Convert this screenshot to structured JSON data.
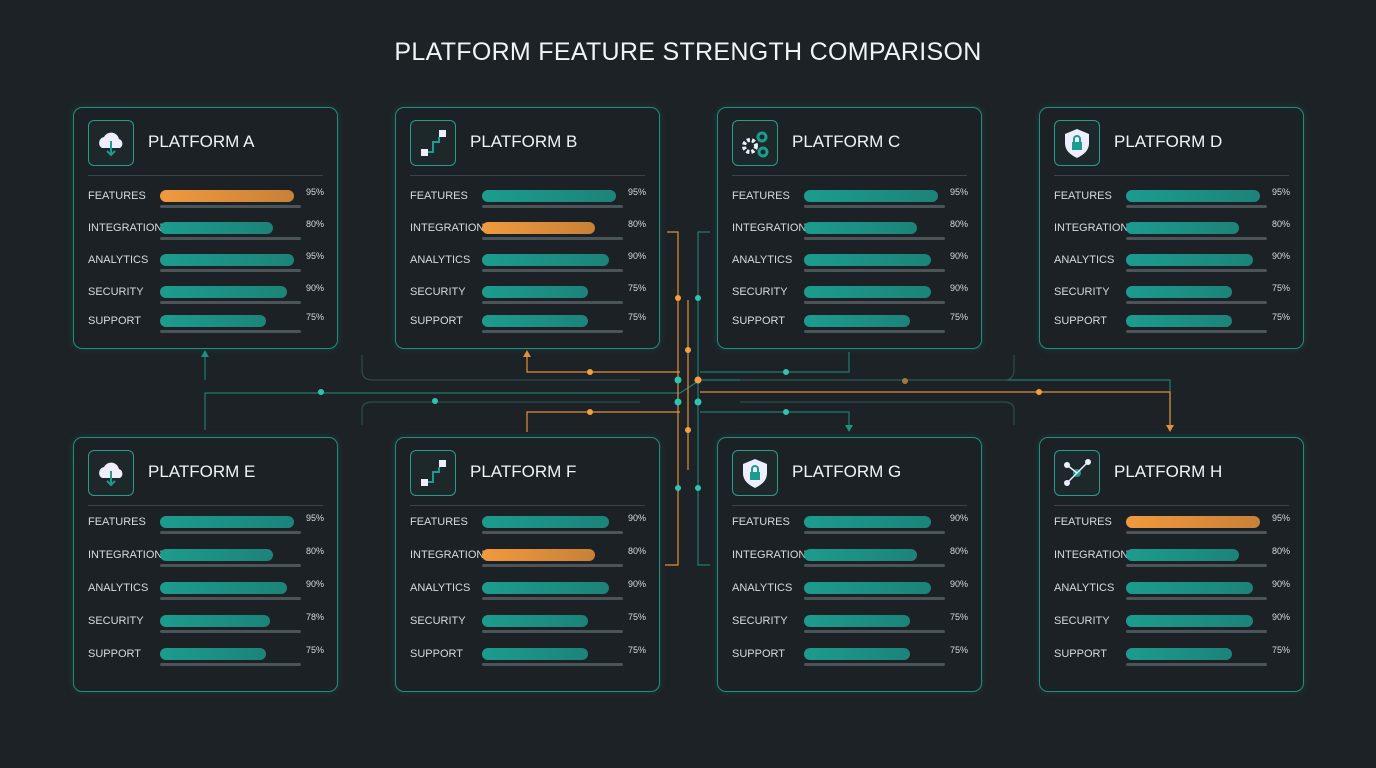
{
  "title": "PLATFORM FEATURE STRENGTH COMPARISON",
  "cards": [
    {
      "name": "PLATFORM A",
      "rows": [
        {
          "label": "FEATURES",
          "value": 95,
          "value_label": "95%",
          "color": "#f2993d"
        },
        {
          "label": "INTEGRATION",
          "value": 80,
          "value_label": "80%",
          "color": "#1c9c8e"
        },
        {
          "label": "ANALYTICS",
          "value": 95,
          "value_label": "95%",
          "color": "#1c9c8e"
        },
        {
          "label": "SECURITY",
          "value": 90,
          "value_label": "90%",
          "color": "#1c9c8e"
        },
        {
          "label": "SUPPORT",
          "value": 75,
          "value_label": "75%",
          "color": "#1c9c8e"
        }
      ]
    },
    {
      "name": "PLATFORM B",
      "rows": [
        {
          "label": "FEATURES",
          "value": 95,
          "value_label": "95%",
          "color": "#1c9c8e"
        },
        {
          "label": "INTEGRATION",
          "value": 80,
          "value_label": "80%",
          "color": "#f2993d"
        },
        {
          "label": "ANALYTICS",
          "value": 90,
          "value_label": "90%",
          "color": "#1c9c8e"
        },
        {
          "label": "SECURITY",
          "value": 75,
          "value_label": "75%",
          "color": "#1c9c8e"
        },
        {
          "label": "SUPPORT",
          "value": 75,
          "value_label": "75%",
          "color": "#1c9c8e"
        }
      ]
    },
    {
      "name": "PLATFORM C",
      "rows": [
        {
          "label": "FEATURES",
          "value": 95,
          "value_label": "95%",
          "color": "#1c9c8e"
        },
        {
          "label": "INTEGRATION",
          "value": 80,
          "value_label": "80%",
          "color": "#1c9c8e"
        },
        {
          "label": "ANALYTICS",
          "value": 90,
          "value_label": "90%",
          "color": "#1c9c8e"
        },
        {
          "label": "SECURITY",
          "value": 90,
          "value_label": "90%",
          "color": "#1c9c8e"
        },
        {
          "label": "SUPPORT",
          "value": 75,
          "value_label": "75%",
          "color": "#1c9c8e"
        }
      ]
    },
    {
      "name": "PLATFORM D",
      "rows": [
        {
          "label": "FEATURES",
          "value": 95,
          "value_label": "95%",
          "color": "#1c9c8e"
        },
        {
          "label": "INTEGRATION",
          "value": 80,
          "value_label": "80%",
          "color": "#1c9c8e"
        },
        {
          "label": "ANALYTICS",
          "value": 90,
          "value_label": "90%",
          "color": "#1c9c8e"
        },
        {
          "label": "SECURITY",
          "value": 75,
          "value_label": "75%",
          "color": "#1c9c8e"
        },
        {
          "label": "SUPPORT",
          "value": 75,
          "value_label": "75%",
          "color": "#1c9c8e"
        }
      ]
    },
    {
      "name": "PLATFORM E",
      "rows": [
        {
          "label": "FEATURES",
          "value": 95,
          "value_label": "95%",
          "color": "#1c9c8e"
        },
        {
          "label": "INTEGRATION",
          "value": 80,
          "value_label": "80%",
          "color": "#1c9c8e"
        },
        {
          "label": "ANALYTICS",
          "value": 90,
          "value_label": "90%",
          "color": "#1c9c8e"
        },
        {
          "label": "SECURITY",
          "value": 78,
          "value_label": "78%",
          "color": "#1c9c8e"
        },
        {
          "label": "SUPPORT",
          "value": 75,
          "value_label": "75%",
          "color": "#1c9c8e"
        }
      ]
    },
    {
      "name": "PLATFORM F",
      "rows": [
        {
          "label": "FEATURES",
          "value": 90,
          "value_label": "90%",
          "color": "#1c9c8e"
        },
        {
          "label": "INTEGRATION",
          "value": 80,
          "value_label": "80%",
          "color": "#f2993d"
        },
        {
          "label": "ANALYTICS",
          "value": 90,
          "value_label": "90%",
          "color": "#1c9c8e"
        },
        {
          "label": "SECURITY",
          "value": 75,
          "value_label": "75%",
          "color": "#1c9c8e"
        },
        {
          "label": "SUPPORT",
          "value": 75,
          "value_label": "75%",
          "color": "#1c9c8e"
        }
      ]
    },
    {
      "name": "PLATFORM G",
      "rows": [
        {
          "label": "FEATURES",
          "value": 90,
          "value_label": "90%",
          "color": "#1c9c8e"
        },
        {
          "label": "INTEGRATION",
          "value": 80,
          "value_label": "80%",
          "color": "#1c9c8e"
        },
        {
          "label": "ANALYTICS",
          "value": 90,
          "value_label": "90%",
          "color": "#1c9c8e"
        },
        {
          "label": "SECURITY",
          "value": 75,
          "value_label": "75%",
          "color": "#1c9c8e"
        },
        {
          "label": "SUPPORT",
          "value": 75,
          "value_label": "75%",
          "color": "#1c9c8e"
        }
      ]
    },
    {
      "name": "PLATFORM H",
      "rows": [
        {
          "label": "FEATURES",
          "value": 95,
          "value_label": "95%",
          "color": "#f2993d"
        },
        {
          "label": "INTEGRATION",
          "value": 80,
          "value_label": "80%",
          "color": "#1c9c8e"
        },
        {
          "label": "ANALYTICS",
          "value": 90,
          "value_label": "90%",
          "color": "#1c9c8e"
        },
        {
          "label": "SECURITY",
          "value": 90,
          "value_label": "90%",
          "color": "#1c9c8e"
        },
        {
          "label": "SUPPORT",
          "value": 75,
          "value_label": "75%",
          "color": "#1c9c8e"
        }
      ]
    }
  ]
}
